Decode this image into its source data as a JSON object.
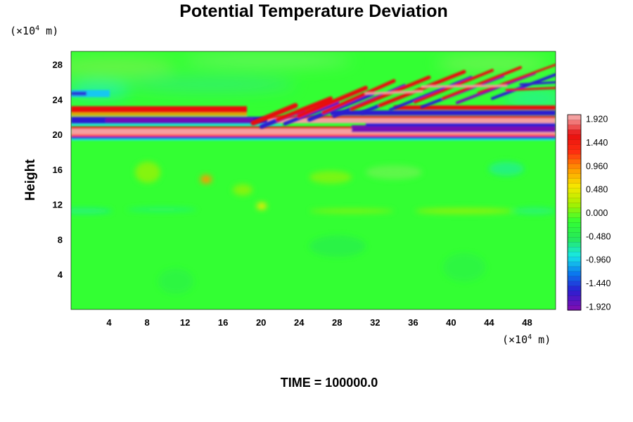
{
  "chart_data": {
    "type": "heatmap",
    "title": "Potential Temperature Deviation",
    "ylabel": "Height",
    "xlabel": "",
    "x_unit": {
      "prefix": "(×10",
      "exp": "4",
      "suffix": " m)"
    },
    "y_unit": {
      "prefix": "(×10",
      "exp": "4",
      "suffix": " m)"
    },
    "xlim": [
      0,
      51
    ],
    "ylim": [
      0,
      29.5
    ],
    "x_ticks": [
      4,
      8,
      12,
      16,
      20,
      24,
      28,
      32,
      36,
      40,
      44,
      48
    ],
    "y_ticks": [
      4,
      8,
      12,
      16,
      20,
      24,
      28
    ],
    "colorbar": {
      "min": -2.0,
      "max": 2.0,
      "ticks": [
        "1.920",
        "1.440",
        "0.960",
        "0.480",
        "0.000",
        "-0.480",
        "-0.960",
        "-1.440",
        "-1.920"
      ],
      "colors": [
        "#7a0fb4",
        "#2a1ed2",
        "#0a7af0",
        "#18e8e8",
        "#26e85a",
        "#33ff33",
        "#a8f000",
        "#f6e800",
        "#ff9900",
        "#ff3010",
        "#e81010",
        "#f4a0a0"
      ]
    },
    "annotation": "TIME = 100000.0"
  }
}
